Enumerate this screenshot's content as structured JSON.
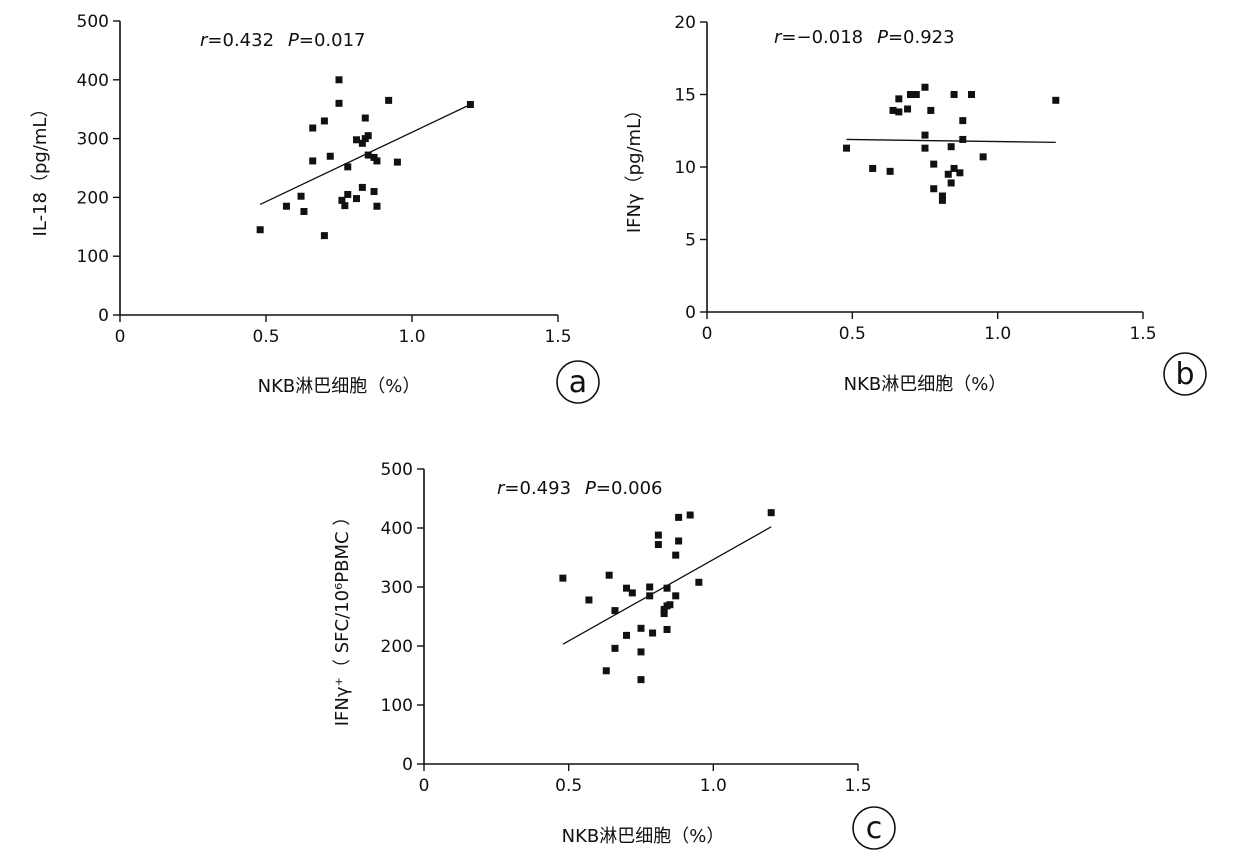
{
  "chart_data": [
    {
      "type": "scatter",
      "panel_label": "a",
      "ylabel": "IL-18（pg/mL）",
      "xlabel": "NKB淋巴细胞（%）",
      "stat": {
        "r_sym": "r",
        "r": "=0.432",
        "p_sym": "P",
        "p": "=0.017"
      },
      "xlim": [
        0,
        1.5
      ],
      "ylim": [
        0,
        500
      ],
      "xticks": [
        0,
        0.5,
        1.0,
        1.5
      ],
      "xtick_labels": [
        "0",
        "0.5",
        "1.0",
        "1.5"
      ],
      "yticks": [
        0,
        100,
        200,
        300,
        400,
        500
      ],
      "ytick_labels": [
        "0",
        "100",
        "200",
        "300",
        "400",
        "500"
      ],
      "points": [
        [
          0.48,
          145
        ],
        [
          0.57,
          185
        ],
        [
          0.62,
          202
        ],
        [
          0.63,
          176
        ],
        [
          0.66,
          318
        ],
        [
          0.66,
          262
        ],
        [
          0.7,
          330
        ],
        [
          0.7,
          135
        ],
        [
          0.72,
          270
        ],
        [
          0.75,
          400
        ],
        [
          0.75,
          360
        ],
        [
          0.76,
          195
        ],
        [
          0.77,
          186
        ],
        [
          0.78,
          252
        ],
        [
          0.78,
          205
        ],
        [
          0.81,
          298
        ],
        [
          0.81,
          198
        ],
        [
          0.83,
          217
        ],
        [
          0.83,
          292
        ],
        [
          0.84,
          335
        ],
        [
          0.84,
          300
        ],
        [
          0.85,
          305
        ],
        [
          0.85,
          272
        ],
        [
          0.87,
          268
        ],
        [
          0.87,
          210
        ],
        [
          0.88,
          185
        ],
        [
          0.88,
          262
        ],
        [
          0.92,
          365
        ],
        [
          0.95,
          260
        ],
        [
          1.2,
          358
        ]
      ],
      "fit": [
        [
          0.48,
          188
        ],
        [
          1.2,
          358
        ]
      ]
    },
    {
      "type": "scatter",
      "panel_label": "b",
      "ylabel": "IFNγ（pg/mL）",
      "xlabel": "NKB淋巴细胞（%）",
      "stat": {
        "r_sym": "r",
        "r": "=−0.018",
        "p_sym": "P",
        "p": "=0.923"
      },
      "xlim": [
        0,
        1.5
      ],
      "ylim": [
        0,
        20
      ],
      "xticks": [
        0,
        0.5,
        1.0,
        1.5
      ],
      "xtick_labels": [
        "0",
        "0.5",
        "1.0",
        "1.5"
      ],
      "yticks": [
        0,
        5,
        10,
        15,
        20
      ],
      "ytick_labels": [
        "0",
        "5",
        "10",
        "15",
        "20"
      ],
      "points": [
        [
          0.48,
          11.3
        ],
        [
          0.57,
          9.9
        ],
        [
          0.63,
          9.7
        ],
        [
          0.64,
          13.9
        ],
        [
          0.66,
          14.7
        ],
        [
          0.66,
          13.8
        ],
        [
          0.69,
          14.0
        ],
        [
          0.7,
          15.0
        ],
        [
          0.71,
          15.0
        ],
        [
          0.72,
          15.0
        ],
        [
          0.75,
          15.5
        ],
        [
          0.75,
          12.2
        ],
        [
          0.75,
          11.3
        ],
        [
          0.77,
          13.9
        ],
        [
          0.78,
          10.2
        ],
        [
          0.78,
          8.5
        ],
        [
          0.81,
          8.0
        ],
        [
          0.81,
          7.7
        ],
        [
          0.83,
          9.5
        ],
        [
          0.84,
          8.9
        ],
        [
          0.84,
          11.4
        ],
        [
          0.85,
          15.0
        ],
        [
          0.85,
          9.9
        ],
        [
          0.87,
          9.6
        ],
        [
          0.88,
          13.2
        ],
        [
          0.88,
          11.9
        ],
        [
          0.91,
          15.0
        ],
        [
          0.95,
          10.7
        ],
        [
          1.2,
          14.6
        ]
      ],
      "fit": [
        [
          0.48,
          11.9
        ],
        [
          1.2,
          11.7
        ]
      ]
    },
    {
      "type": "scatter",
      "panel_label": "c",
      "ylabel": "IFNγ⁺（ SFC/10⁶PBMC ）",
      "xlabel": "NKB淋巴细胞（%）",
      "stat": {
        "r_sym": "r",
        "r": "=0.493",
        "p_sym": "P",
        "p": "=0.006"
      },
      "xlim": [
        0,
        1.5
      ],
      "ylim": [
        0,
        500
      ],
      "xticks": [
        0,
        0.5,
        1.0,
        1.5
      ],
      "xtick_labels": [
        "0",
        "0.5",
        "1.0",
        "1.5"
      ],
      "yticks": [
        0,
        100,
        200,
        300,
        400,
        500
      ],
      "ytick_labels": [
        "0",
        "100",
        "200",
        "300",
        "400",
        "500"
      ],
      "points": [
        [
          0.48,
          315
        ],
        [
          0.57,
          278
        ],
        [
          0.63,
          158
        ],
        [
          0.64,
          320
        ],
        [
          0.66,
          260
        ],
        [
          0.66,
          196
        ],
        [
          0.7,
          298
        ],
        [
          0.7,
          218
        ],
        [
          0.72,
          290
        ],
        [
          0.75,
          230
        ],
        [
          0.75,
          190
        ],
        [
          0.75,
          143
        ],
        [
          0.78,
          285
        ],
        [
          0.78,
          300
        ],
        [
          0.79,
          222
        ],
        [
          0.81,
          372
        ],
        [
          0.81,
          388
        ],
        [
          0.83,
          262
        ],
        [
          0.83,
          255
        ],
        [
          0.84,
          268
        ],
        [
          0.84,
          228
        ],
        [
          0.84,
          298
        ],
        [
          0.85,
          270
        ],
        [
          0.87,
          354
        ],
        [
          0.87,
          285
        ],
        [
          0.88,
          418
        ],
        [
          0.88,
          378
        ],
        [
          0.92,
          422
        ],
        [
          0.95,
          308
        ],
        [
          1.2,
          426
        ]
      ],
      "fit": [
        [
          0.48,
          203
        ],
        [
          1.2,
          402
        ]
      ]
    }
  ]
}
